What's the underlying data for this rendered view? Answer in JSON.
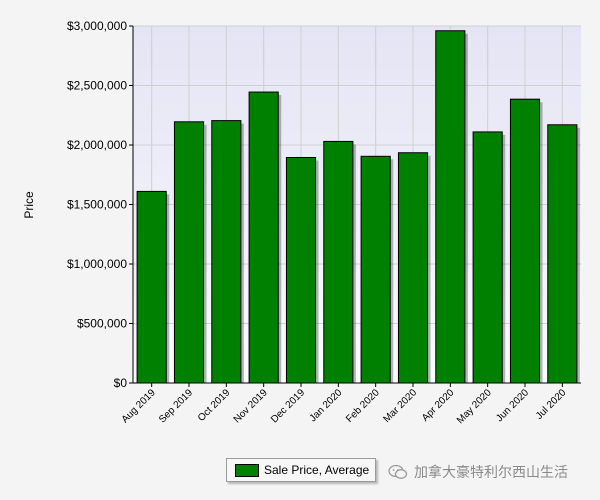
{
  "chart_data": {
    "type": "bar",
    "categories": [
      "Aug 2019",
      "Sep 2019",
      "Oct 2019",
      "Nov 2019",
      "Dec 2019",
      "Jan 2020",
      "Feb 2020",
      "Mar 2020",
      "Apr 2020",
      "May 2020",
      "Jun 2020",
      "Jul 2020"
    ],
    "series": [
      {
        "name": "Sale Price, Average",
        "values": [
          1610000,
          2195000,
          2205000,
          2445000,
          1895000,
          2030000,
          1905000,
          1935000,
          2960000,
          2110000,
          2385000,
          2170000
        ]
      }
    ],
    "title": "",
    "xlabel": "",
    "ylabel": "Price",
    "ylim": [
      0,
      3000000
    ],
    "yticks": [
      0,
      500000,
      1000000,
      1500000,
      2000000,
      2500000,
      3000000
    ],
    "ytick_labels": [
      "$0",
      "$500,000",
      "$1,000,000",
      "$1,500,000",
      "$2,000,000",
      "$2,500,000",
      "$3,000,000"
    ],
    "grid": true,
    "legend_position": "bottom",
    "colors": {
      "bar": "#008000",
      "plot_background": "#eeeef8",
      "grid": "#d0d0d0",
      "axis": "#000000"
    }
  },
  "legend": {
    "label": "Sale Price, Average"
  },
  "watermark": {
    "text": "加拿大豪特利尔西山生活",
    "icon": "wechat-icon"
  }
}
